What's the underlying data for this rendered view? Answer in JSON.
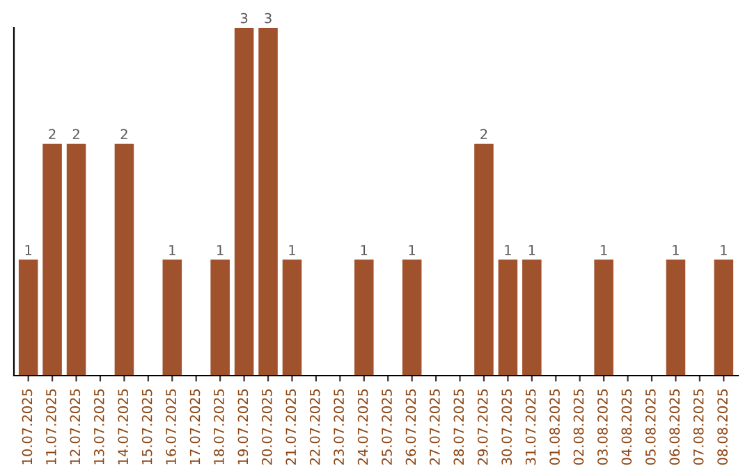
{
  "chart_data": {
    "type": "bar",
    "categories": [
      "10.07.2025",
      "11.07.2025",
      "12.07.2025",
      "13.07.2025",
      "14.07.2025",
      "15.07.2025",
      "16.07.2025",
      "17.07.2025",
      "18.07.2025",
      "19.07.2025",
      "20.07.2025",
      "21.07.2025",
      "22.07.2025",
      "23.07.2025",
      "24.07.2025",
      "25.07.2025",
      "26.07.2025",
      "27.07.2025",
      "28.07.2025",
      "29.07.2025",
      "30.07.2025",
      "31.07.2025",
      "01.08.2025",
      "02.08.2025",
      "03.08.2025",
      "04.08.2025",
      "05.08.2025",
      "06.08.2025",
      "07.08.2025",
      "08.08.2025"
    ],
    "values": [
      1,
      2,
      2,
      0,
      2,
      0,
      1,
      0,
      1,
      3,
      3,
      1,
      0,
      0,
      1,
      0,
      1,
      0,
      0,
      2,
      1,
      1,
      0,
      0,
      1,
      0,
      0,
      1,
      0,
      1
    ],
    "value_labels": [
      "1",
      "2",
      "2",
      null,
      "2",
      null,
      "1",
      null,
      "1",
      "3",
      "3",
      "1",
      null,
      null,
      "1",
      null,
      "1",
      null,
      null,
      "2",
      "1",
      "1",
      null,
      null,
      "1",
      null,
      null,
      "1",
      null,
      "1"
    ],
    "color": "#a0522d",
    "ylim": [
      0,
      3
    ],
    "tick_labels": "x",
    "grid": false,
    "legend": false
  }
}
